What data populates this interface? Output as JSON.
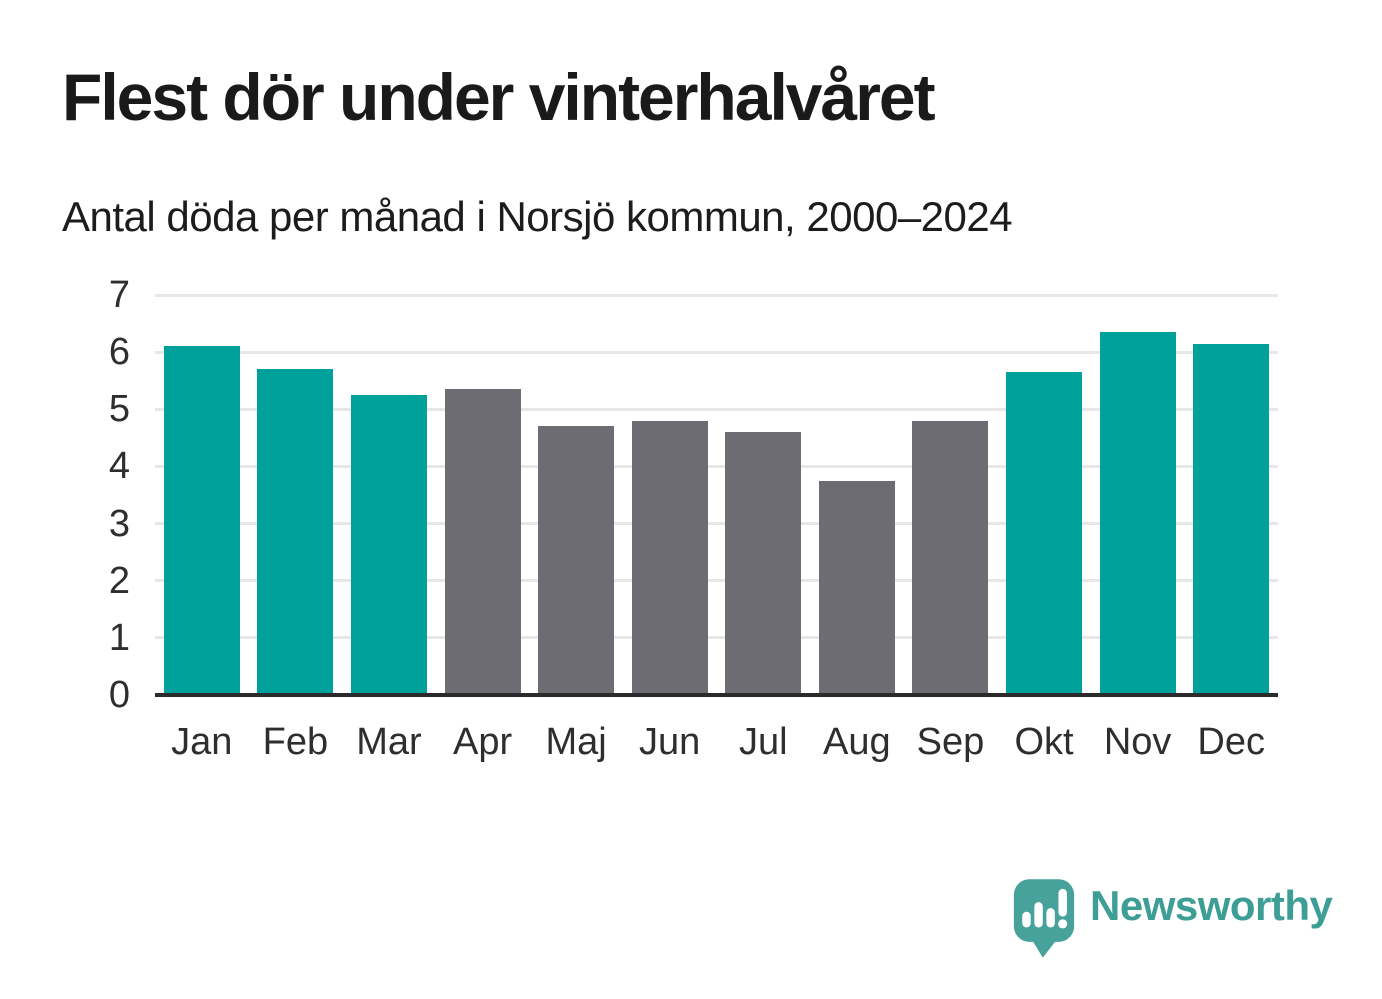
{
  "chart_data": {
    "type": "bar",
    "title": "Flest dör under vinterhalvåret",
    "subtitle": "Antal döda per månad i Norsjö kommun, 2000–2024",
    "categories": [
      "Jan",
      "Feb",
      "Mar",
      "Apr",
      "Maj",
      "Jun",
      "Jul",
      "Aug",
      "Sep",
      "Okt",
      "Nov",
      "Dec"
    ],
    "values": [
      6.1,
      5.7,
      5.25,
      5.35,
      4.7,
      4.8,
      4.6,
      3.75,
      4.8,
      5.65,
      6.35,
      6.15
    ],
    "bar_colors": [
      "teal",
      "teal",
      "teal",
      "gray",
      "gray",
      "gray",
      "gray",
      "gray",
      "gray",
      "teal",
      "teal",
      "teal"
    ],
    "colors": {
      "teal": "#00a19a",
      "gray": "#6c6c72"
    },
    "xlabel": "",
    "ylabel": "",
    "ylim": [
      0,
      7
    ],
    "yticks": [
      0,
      1,
      2,
      3,
      4,
      5,
      6,
      7
    ],
    "grid": true,
    "legend": false,
    "gridline_color": "#e7e7e7",
    "axis_color": "#2b2b2b"
  },
  "branding": {
    "logo_text": "Newsworthy",
    "logo_text_color": "#3d9e95",
    "icon_color": "#46a29a",
    "icon_mark_color": "#ffffff",
    "icon_name": "newsworthy-speech-bubble-chart-icon"
  }
}
